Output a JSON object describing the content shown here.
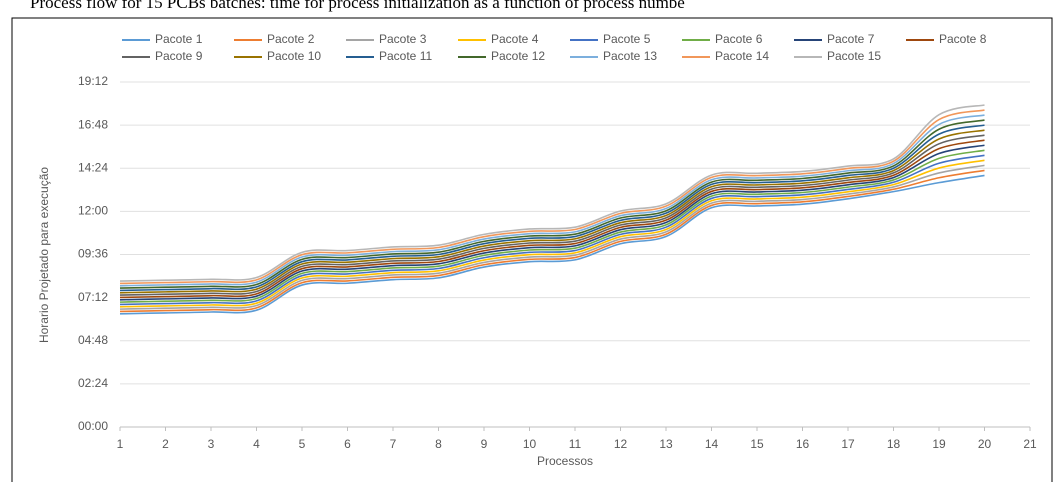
{
  "chart_data": {
    "type": "line",
    "title": "Process flow for 15 PCBs batches: time for process initialization as a function of process numbe",
    "x_label": "Processos",
    "y_label": "Horario Projetado para execução",
    "x": [
      1,
      2,
      3,
      4,
      5,
      6,
      7,
      8,
      9,
      10,
      11,
      12,
      13,
      14,
      15,
      16,
      17,
      18,
      19,
      20
    ],
    "xlim": [
      1,
      21
    ],
    "xticks": [
      1,
      2,
      3,
      4,
      5,
      6,
      7,
      8,
      9,
      10,
      11,
      12,
      13,
      14,
      15,
      16,
      17,
      18,
      19,
      20,
      21
    ],
    "ylim": [
      0,
      19.2
    ],
    "yticks": [
      {
        "value": 0,
        "label": "00:00"
      },
      {
        "value": 2.4,
        "label": "02:24"
      },
      {
        "value": 4.8,
        "label": "04:48"
      },
      {
        "value": 7.2,
        "label": "07:12"
      },
      {
        "value": 9.6,
        "label": "09:36"
      },
      {
        "value": 12,
        "label": "12:00"
      },
      {
        "value": 14.4,
        "label": "14:24"
      },
      {
        "value": 16.8,
        "label": "16:48"
      },
      {
        "value": 19.2,
        "label": "19:12"
      }
    ],
    "grid": true,
    "legend": "top",
    "series": [
      {
        "name": "Pacote 1",
        "color": "#5b9bd5",
        "values": [
          6.3,
          6.35,
          6.4,
          6.5,
          7.9,
          8.0,
          8.2,
          8.3,
          8.9,
          9.2,
          9.3,
          10.2,
          10.6,
          12.2,
          12.3,
          12.4,
          12.7,
          13.1,
          13.6,
          14.0
        ]
      },
      {
        "name": "Pacote 2",
        "color": "#ed7d31",
        "values": [
          6.43,
          6.48,
          6.53,
          6.63,
          8.03,
          8.13,
          8.33,
          8.43,
          9.03,
          9.33,
          9.43,
          10.33,
          10.73,
          12.33,
          12.43,
          12.53,
          12.83,
          13.23,
          13.87,
          14.28
        ]
      },
      {
        "name": "Pacote 3",
        "color": "#a5a5a5",
        "values": [
          6.56,
          6.61,
          6.66,
          6.76,
          8.16,
          8.26,
          8.46,
          8.56,
          9.16,
          9.46,
          9.56,
          10.46,
          10.86,
          12.46,
          12.56,
          12.66,
          12.96,
          13.36,
          14.14,
          14.56
        ]
      },
      {
        "name": "Pacote 4",
        "color": "#ffc000",
        "values": [
          6.69,
          6.74,
          6.79,
          6.89,
          8.29,
          8.39,
          8.59,
          8.69,
          9.29,
          9.59,
          9.69,
          10.59,
          10.99,
          12.59,
          12.69,
          12.79,
          13.09,
          13.49,
          14.41,
          14.84
        ]
      },
      {
        "name": "Pacote 5",
        "color": "#4472c4",
        "values": [
          6.82,
          6.87,
          6.92,
          7.02,
          8.42,
          8.52,
          8.72,
          8.82,
          9.42,
          9.72,
          9.82,
          10.72,
          11.12,
          12.72,
          12.82,
          12.92,
          13.22,
          13.62,
          14.68,
          15.12
        ]
      },
      {
        "name": "Pacote 6",
        "color": "#70ad47",
        "values": [
          6.95,
          7.0,
          7.05,
          7.15,
          8.55,
          8.65,
          8.85,
          8.95,
          9.55,
          9.85,
          9.95,
          10.85,
          11.25,
          12.85,
          12.95,
          13.05,
          13.35,
          13.75,
          14.95,
          15.4
        ]
      },
      {
        "name": "Pacote 7",
        "color": "#264478",
        "values": [
          7.08,
          7.13,
          7.18,
          7.28,
          8.68,
          8.78,
          8.98,
          9.08,
          9.68,
          9.98,
          10.08,
          10.98,
          11.38,
          12.98,
          13.08,
          13.18,
          13.48,
          13.88,
          15.22,
          15.68
        ]
      },
      {
        "name": "Pacote 8",
        "color": "#9e480e",
        "values": [
          7.21,
          7.26,
          7.31,
          7.41,
          8.81,
          8.91,
          9.11,
          9.21,
          9.81,
          10.11,
          10.21,
          11.11,
          11.51,
          13.11,
          13.21,
          13.31,
          13.61,
          14.01,
          15.49,
          15.96
        ]
      },
      {
        "name": "Pacote 9",
        "color": "#636363",
        "values": [
          7.34,
          7.39,
          7.44,
          7.54,
          8.94,
          9.04,
          9.24,
          9.34,
          9.94,
          10.24,
          10.34,
          11.24,
          11.64,
          13.24,
          13.34,
          13.44,
          13.74,
          14.14,
          15.76,
          16.24
        ]
      },
      {
        "name": "Pacote 10",
        "color": "#997300",
        "values": [
          7.47,
          7.52,
          7.57,
          7.67,
          9.07,
          9.17,
          9.37,
          9.47,
          10.07,
          10.37,
          10.47,
          11.37,
          11.77,
          13.37,
          13.47,
          13.57,
          13.87,
          14.27,
          16.03,
          16.52
        ]
      },
      {
        "name": "Pacote 11",
        "color": "#255e91",
        "values": [
          7.6,
          7.65,
          7.7,
          7.8,
          9.2,
          9.3,
          9.5,
          9.6,
          10.2,
          10.5,
          10.6,
          11.5,
          11.9,
          13.5,
          13.6,
          13.7,
          14.0,
          14.4,
          16.3,
          16.8
        ]
      },
      {
        "name": "Pacote 12",
        "color": "#43682b",
        "values": [
          7.73,
          7.78,
          7.83,
          7.93,
          9.33,
          9.43,
          9.63,
          9.73,
          10.33,
          10.63,
          10.73,
          11.63,
          12.03,
          13.63,
          13.73,
          13.83,
          14.13,
          14.53,
          16.57,
          17.08
        ]
      },
      {
        "name": "Pacote 13",
        "color": "#7cafdd",
        "values": [
          7.86,
          7.91,
          7.96,
          8.06,
          9.46,
          9.56,
          9.76,
          9.86,
          10.46,
          10.76,
          10.86,
          11.76,
          12.16,
          13.76,
          13.86,
          13.96,
          14.26,
          14.66,
          16.84,
          17.36
        ]
      },
      {
        "name": "Pacote 14",
        "color": "#f1975a",
        "values": [
          7.99,
          8.04,
          8.09,
          8.19,
          9.59,
          9.69,
          9.89,
          9.99,
          10.59,
          10.89,
          10.99,
          11.89,
          12.29,
          13.89,
          13.99,
          14.09,
          14.39,
          14.79,
          17.11,
          17.64
        ]
      },
      {
        "name": "Pacote 15",
        "color": "#b7b7b7",
        "values": [
          8.12,
          8.17,
          8.22,
          8.32,
          9.72,
          9.82,
          10.02,
          10.12,
          10.72,
          11.02,
          11.12,
          12.02,
          12.42,
          14.02,
          14.12,
          14.22,
          14.52,
          14.92,
          17.38,
          17.92
        ]
      }
    ]
  }
}
